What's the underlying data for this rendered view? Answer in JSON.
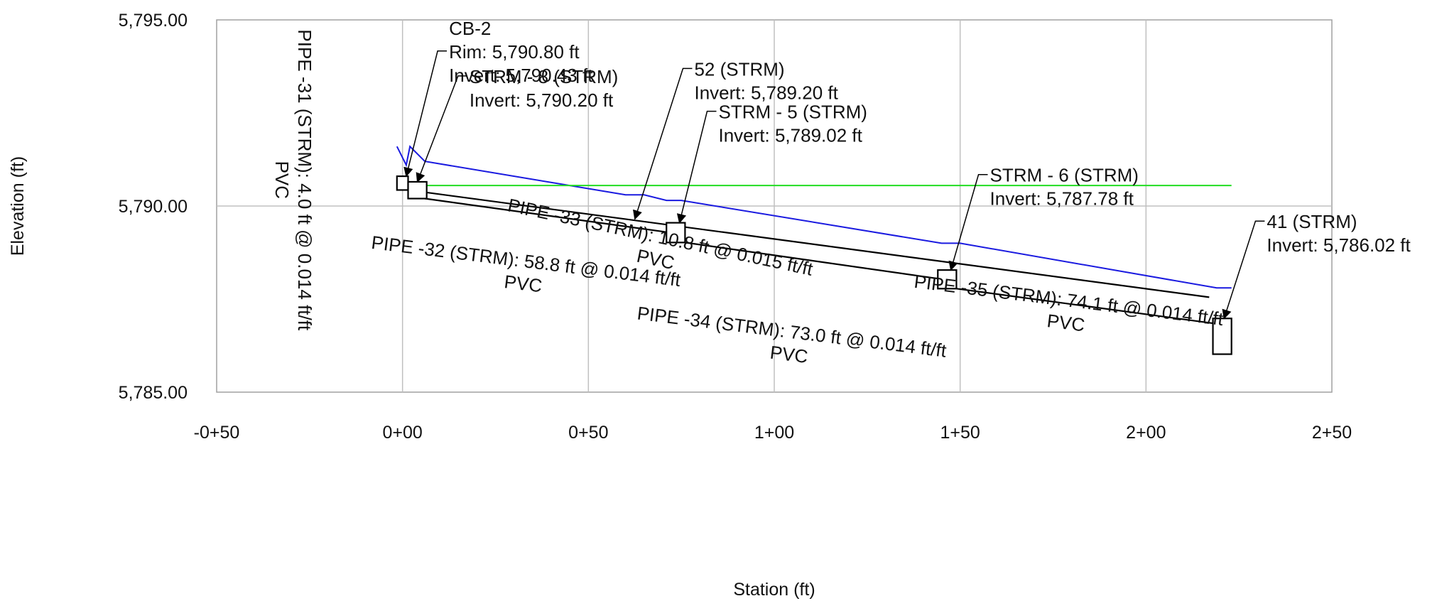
{
  "chart_data": {
    "type": "line",
    "title": "",
    "xlabel": "Station (ft)",
    "ylabel": "Elevation (ft)",
    "xlim": [
      -50,
      250
    ],
    "ylim": [
      5785,
      5795
    ],
    "grid": true,
    "x_ticks": [
      {
        "value": -50,
        "label": "-0+50"
      },
      {
        "value": 0,
        "label": "0+00"
      },
      {
        "value": 50,
        "label": "0+50"
      },
      {
        "value": 100,
        "label": "1+00"
      },
      {
        "value": 150,
        "label": "1+50"
      },
      {
        "value": 200,
        "label": "2+00"
      },
      {
        "value": 250,
        "label": "2+50"
      }
    ],
    "y_ticks": [
      {
        "value": 5785,
        "label": "5,785.00"
      },
      {
        "value": 5790,
        "label": "5,790.00"
      },
      {
        "value": 5795,
        "label": "5,795.00"
      }
    ],
    "colors": {
      "hgl": "#1a1ae0",
      "reference": "#22dd22",
      "pipe": "#000000",
      "grid": "#c0c0c0"
    },
    "series": [
      {
        "color": "#1a1ae0",
        "x": [
          -1.5,
          1,
          2,
          6,
          60,
          65,
          71,
          75,
          145,
          150,
          219,
          223
        ],
        "y": [
          5791.6,
          5791.1,
          5791.6,
          5791.2,
          5790.3,
          5790.3,
          5790.15,
          5790.15,
          5789.0,
          5789.0,
          5787.8,
          5787.8
        ]
      },
      {
        "color": "#22dd22",
        "x": [
          0,
          223
        ],
        "y": [
          5790.55,
          5790.55
        ]
      }
    ],
    "structures": [
      {
        "x": 0,
        "y_bottom": 5790.43,
        "y_top": 5790.8,
        "half_width": 1.5
      },
      {
        "x": 4,
        "y_bottom": 5790.2,
        "y_top": 5790.65,
        "half_width": 2.5
      },
      {
        "x": 73.5,
        "y_bottom": 5789.02,
        "y_top": 5789.55,
        "half_width": 2.5
      },
      {
        "x": 146.5,
        "y_bottom": 5787.78,
        "y_top": 5788.28,
        "half_width": 2.5
      },
      {
        "x": 220.5,
        "y_bottom": 5786.02,
        "y_top": 5786.98,
        "half_width": 2.5
      }
    ],
    "pipes": [
      {
        "x1": 1.5,
        "y1": 5790.43,
        "x2": 217,
        "y2": 5787.55
      },
      {
        "x1": 6,
        "y1": 5790.2,
        "x2": 71,
        "y2": 5789.3
      },
      {
        "x1": 76,
        "y1": 5789.02,
        "x2": 144,
        "y2": 5788.05
      },
      {
        "x1": 149,
        "y1": 5787.78,
        "x2": 218,
        "y2": 5786.85
      }
    ],
    "node_labels": [
      {
        "lines": [
          "CB-2",
          "Rim: 5,790.80 ft",
          "Invert: 5,790.43 ft"
        ],
        "x": 12.5,
        "y": 5795.1,
        "ax": 1,
        "ay": 5790.8
      },
      {
        "lines": [
          "STRM - 8 (STRM)",
          "Invert: 5,790.20 ft"
        ],
        "x": 18,
        "y": 5793.8,
        "ax": 4,
        "ay": 5790.65
      },
      {
        "lines": [
          "52 (STRM)",
          "Invert: 5,789.20 ft"
        ],
        "x": 78.5,
        "y": 5794.0,
        "ax": 62.5,
        "ay": 5789.65
      },
      {
        "lines": [
          "STRM - 5 (STRM)",
          "Invert: 5,789.02 ft"
        ],
        "x": 85,
        "y": 5792.85,
        "ax": 74.5,
        "ay": 5789.55
      },
      {
        "lines": [
          "STRM - 6 (STRM)",
          "Invert: 5,787.78 ft"
        ],
        "x": 158,
        "y": 5791.15,
        "ax": 147.5,
        "ay": 5788.28
      },
      {
        "lines": [
          "41 (STRM)",
          "Invert: 5,786.02 ft"
        ],
        "x": 232.5,
        "y": 5789.9,
        "ax": 221,
        "ay": 5786.98
      }
    ],
    "pipe_labels": [
      {
        "lines": [
          "PIPE -31 (STRM): 4.0 ft @ 0.014 ft/ft",
          "PVC"
        ],
        "x": -28,
        "y": 5790.7,
        "angle": 90
      },
      {
        "lines": [
          "PIPE -32 (STRM): 58.8 ft @ 0.014 ft/ft",
          "PVC"
        ],
        "x": 33,
        "y": 5788.35,
        "angle": 7
      },
      {
        "lines": [
          "PIPE -33 (STRM): 10.8 ft @ 0.015 ft/ft",
          "PVC"
        ],
        "x": 69,
        "y": 5789.0,
        "angle": 12
      },
      {
        "lines": [
          "PIPE -34 (STRM): 73.0 ft @ 0.014 ft/ft",
          "PVC"
        ],
        "x": 104.5,
        "y": 5786.45,
        "angle": 7
      },
      {
        "lines": [
          "PIPE -35 (STRM): 74.1 ft @ 0.014 ft/ft",
          "PVC"
        ],
        "x": 179,
        "y": 5787.3,
        "angle": 7
      }
    ]
  }
}
